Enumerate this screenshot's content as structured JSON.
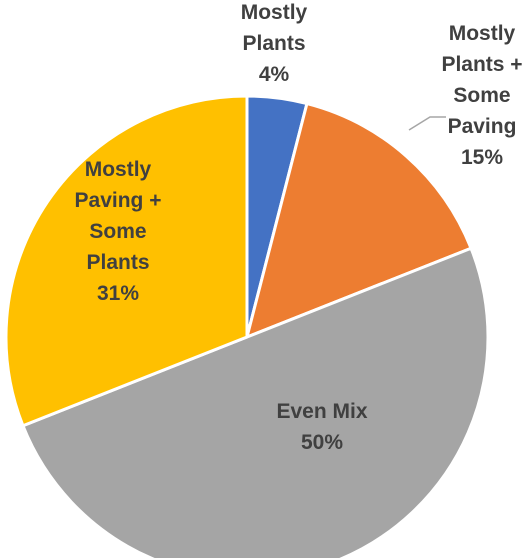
{
  "chart_data": {
    "type": "pie",
    "title": "",
    "slices": [
      {
        "label": "Mostly Plants",
        "value": 4,
        "value_label": "4%",
        "color": "#4472C4"
      },
      {
        "label": "Mostly Plants + Some Paving",
        "value": 15,
        "value_label": "15%",
        "color": "#ED7D31"
      },
      {
        "label": "Even Mix",
        "value": 50,
        "value_label": "50%",
        "color": "#A5A5A5"
      },
      {
        "label": "Mostly Paving + Some Plants",
        "value": 31,
        "value_label": "31%",
        "color": "#FFC000"
      }
    ],
    "start_angle": "12 o'clock",
    "direction": "clockwise",
    "legend": "none",
    "data_labels": "category name and percentage"
  }
}
